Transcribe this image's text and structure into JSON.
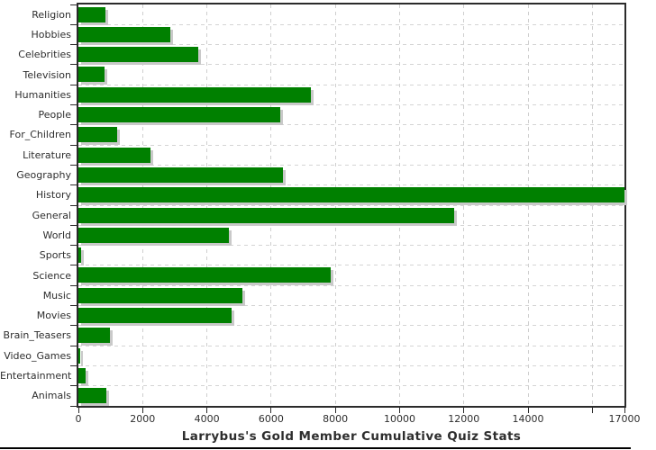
{
  "chart_data": {
    "type": "bar",
    "orientation": "horizontal",
    "title": "Larrybus's Gold Member Cumulative Quiz Stats",
    "categories": [
      "Religion",
      "Hobbies",
      "Celebrities",
      "Television",
      "Humanities",
      "People",
      "For_Children",
      "Literature",
      "Geography",
      "History",
      "General",
      "World",
      "Sports",
      "Science",
      "Music",
      "Movies",
      "Brain_Teasers",
      "Video_Games",
      "Entertainment",
      "Animals"
    ],
    "values": [
      850,
      2870,
      3730,
      810,
      7250,
      6290,
      1220,
      2240,
      6360,
      17000,
      11690,
      4690,
      80,
      7860,
      5110,
      4770,
      980,
      60,
      220,
      870
    ],
    "xlabel": "",
    "ylabel": "",
    "xlim": [
      0,
      17000
    ],
    "x_ticks": [
      0,
      2000,
      4000,
      6000,
      8000,
      10000,
      12000,
      14000,
      16000,
      17000
    ],
    "x_tick_labels": [
      "0",
      "2000",
      "4000",
      "6000",
      "8000",
      "10000",
      "12000",
      "14000",
      "",
      "17000"
    ],
    "grid": true,
    "legend": "none",
    "colors": {
      "bar": "#008000",
      "bar_shadow": "#c9c9c9",
      "grid": "#cfcfcf",
      "axis": "#2b2b2b",
      "text": "#2e2e2e",
      "background": "#ffffff",
      "bottom_line": "#000000"
    }
  }
}
